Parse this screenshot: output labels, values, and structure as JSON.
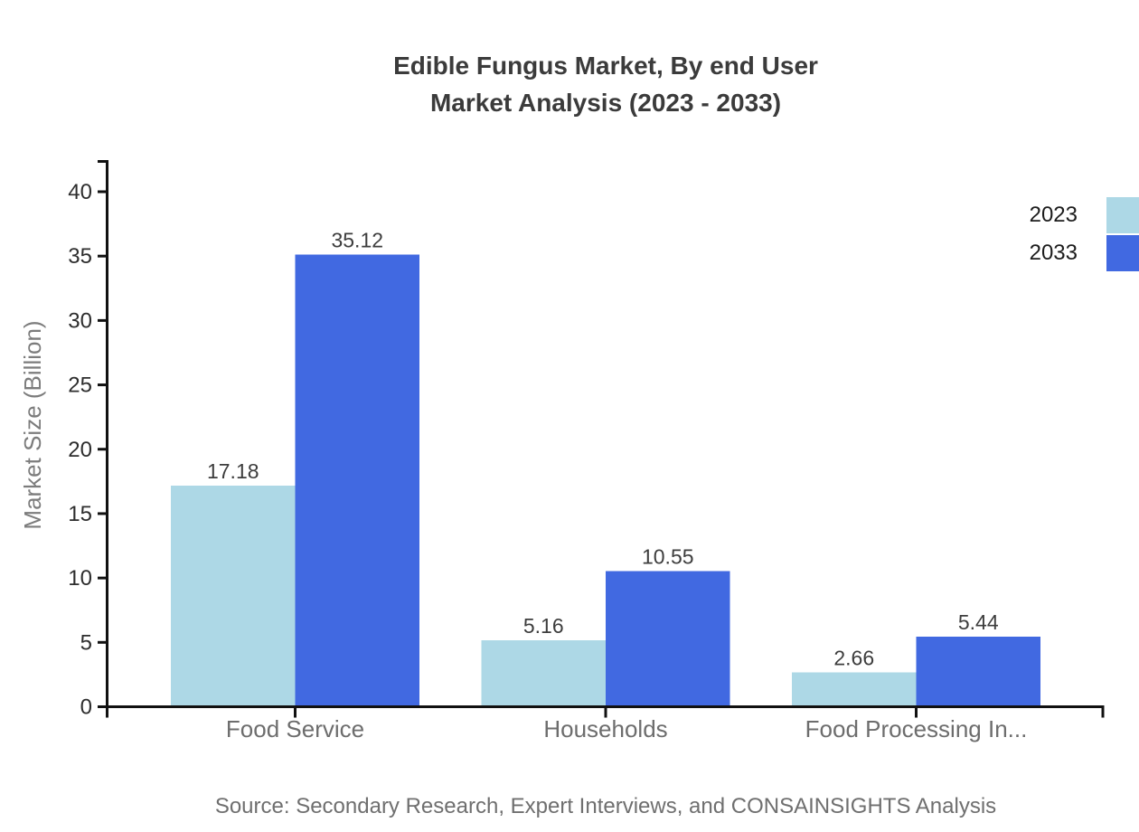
{
  "page": {
    "title_line1": "Edible Fungus Market, By end User",
    "title_line2": "Market Analysis (2023 - 2033)",
    "source": "Source: Secondary Research, Expert Interviews, and CONSAINSIGHTS Analysis"
  },
  "legend": {
    "items": [
      {
        "label": "2023",
        "color": "#ADD8E6"
      },
      {
        "label": "2033",
        "color": "#4169E1"
      }
    ]
  },
  "chart_data": {
    "type": "bar",
    "title": "Edible Fungus Market, By end User Market Analysis (2023 - 2033)",
    "categories": [
      "Food Service",
      "Households",
      "Food Processing In..."
    ],
    "series": [
      {
        "name": "2023",
        "color": "#ADD8E6",
        "values": [
          17.18,
          5.16,
          2.66
        ]
      },
      {
        "name": "2033",
        "color": "#4169E1",
        "values": [
          35.12,
          10.55,
          5.44
        ]
      }
    ],
    "xlabel": "",
    "ylabel": "Market Size (Billion)",
    "ylim": [
      0,
      40
    ],
    "yticks": [
      0,
      5,
      10,
      15,
      20,
      25,
      30,
      35,
      40
    ],
    "grid": false,
    "legend_position": "top-right",
    "value_labels": true,
    "colors": {
      "axis": "#111111",
      "y_tick_label": "#2d2d2d",
      "value_label": "#3d3d3d",
      "category_label": "#6d6d6d"
    }
  }
}
